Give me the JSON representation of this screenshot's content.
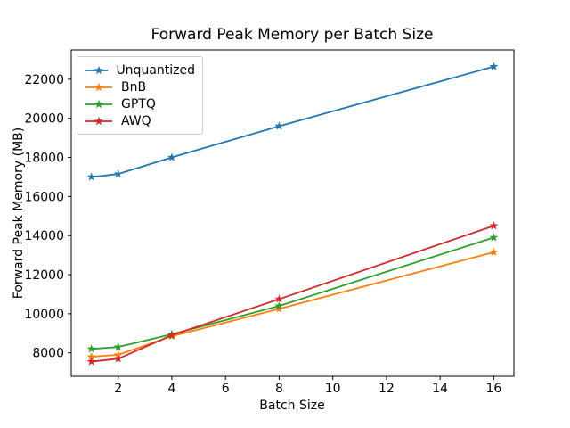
{
  "chart_data": {
    "type": "line",
    "title": "Forward Peak Memory per Batch Size",
    "xlabel": "Batch Size",
    "ylabel": "Forward Peak Memory (MB)",
    "x": [
      1,
      2,
      4,
      8,
      16
    ],
    "series": [
      {
        "name": "Unquantized",
        "color": "#1f77b4",
        "values": [
          17000,
          17150,
          18000,
          19600,
          22650
        ]
      },
      {
        "name": "BnB",
        "color": "#ff7f0e",
        "values": [
          7800,
          7900,
          8850,
          10250,
          13150
        ]
      },
      {
        "name": "GPTQ",
        "color": "#2ca02c",
        "values": [
          8200,
          8300,
          8950,
          10400,
          13900
        ]
      },
      {
        "name": "AWQ",
        "color": "#d62728",
        "values": [
          7550,
          7700,
          8900,
          10750,
          14500
        ]
      }
    ],
    "xticks": [
      2,
      4,
      6,
      8,
      10,
      12,
      14,
      16
    ],
    "yticks": [
      8000,
      10000,
      12000,
      14000,
      16000,
      18000,
      20000,
      22000
    ],
    "xlim": [
      0.25,
      16.75
    ],
    "ylim": [
      6800,
      23500
    ],
    "grid": false,
    "marker": "star",
    "legend_position": "upper left",
    "colors": {
      "axes": "#000000",
      "background": "#ffffff",
      "legend_border": "#cccccc"
    }
  }
}
